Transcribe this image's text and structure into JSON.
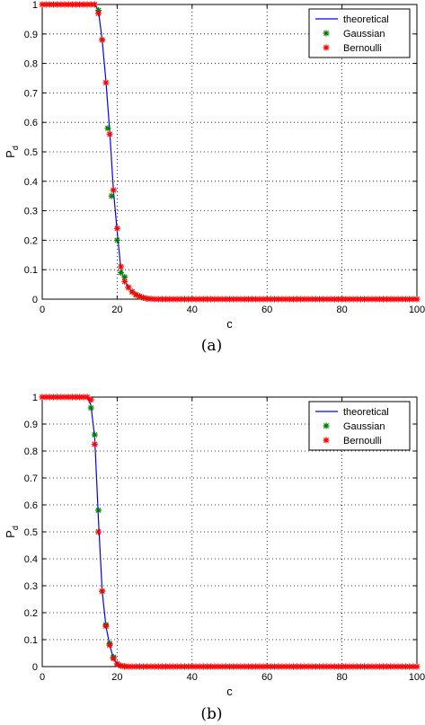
{
  "chart_data": [
    {
      "type": "line",
      "caption": "(a)",
      "xlabel": "c",
      "ylabel_main": "P",
      "ylabel_sub": "d",
      "xlim": [
        0,
        100
      ],
      "ylim": [
        0,
        1
      ],
      "xticks": [
        0,
        20,
        40,
        60,
        80,
        100
      ],
      "yticks": [
        0,
        0.1,
        0.2,
        0.3,
        0.4,
        0.5,
        0.6,
        0.7,
        0.8,
        0.9,
        1
      ],
      "grid": true,
      "legend_position": "top-right",
      "legend": [
        "theoretical",
        "Gaussian",
        "Bernoulli"
      ],
      "series": [
        {
          "name": "theoretical",
          "style": "line",
          "color": "#0000ff",
          "x": [
            0,
            14,
            15,
            16,
            17,
            18,
            19,
            20,
            21,
            22,
            23,
            24,
            25,
            26,
            27,
            28,
            30,
            100
          ],
          "y": [
            1,
            1,
            0.98,
            0.88,
            0.74,
            0.57,
            0.37,
            0.23,
            0.1,
            0.065,
            0.04,
            0.025,
            0.015,
            0.01,
            0.005,
            0.002,
            0,
            0
          ]
        },
        {
          "name": "Gaussian",
          "style": "marker",
          "color": "#007f00",
          "x": [
            15,
            16,
            17.5,
            18.5,
            20,
            21,
            22,
            23,
            24,
            25,
            26,
            27,
            28
          ],
          "y": [
            0.98,
            0.88,
            0.58,
            0.35,
            0.2,
            0.09,
            0.075,
            0.04,
            0.025,
            0.015,
            0.01,
            0.005,
            0.002
          ]
        },
        {
          "name": "Bernoulli",
          "style": "marker",
          "color": "#ff0000",
          "x": [
            0,
            1,
            2,
            3,
            4,
            5,
            6,
            7,
            8,
            9,
            10,
            11,
            12,
            13,
            14,
            15,
            16,
            17,
            18,
            19,
            20,
            21,
            22,
            23,
            24,
            25,
            26,
            27,
            28,
            29,
            30,
            31,
            32,
            33,
            34,
            35,
            36,
            37,
            38,
            39,
            40,
            41,
            42,
            43,
            44,
            45,
            46,
            47,
            48,
            49,
            50,
            51,
            52,
            53,
            54,
            55,
            56,
            57,
            58,
            59,
            60,
            61,
            62,
            63,
            64,
            65,
            66,
            67,
            68,
            69,
            70,
            71,
            72,
            73,
            74,
            75,
            76,
            77,
            78,
            79,
            80,
            81,
            82,
            83,
            84,
            85,
            86,
            87,
            88,
            89,
            90,
            91,
            92,
            93,
            94,
            95,
            96,
            97,
            98,
            99,
            100
          ],
          "y": [
            1,
            1,
            1,
            1,
            1,
            1,
            1,
            1,
            1,
            1,
            1,
            1,
            1,
            1,
            1,
            0.97,
            0.88,
            0.735,
            0.56,
            0.37,
            0.24,
            0.11,
            0.06,
            0.04,
            0.025,
            0.015,
            0.01,
            0.005,
            0.002,
            0.001,
            0,
            0,
            0,
            0,
            0,
            0,
            0,
            0,
            0,
            0,
            0,
            0,
            0,
            0,
            0,
            0,
            0,
            0,
            0,
            0,
            0,
            0,
            0,
            0,
            0,
            0,
            0,
            0,
            0,
            0,
            0,
            0,
            0,
            0,
            0,
            0,
            0,
            0,
            0,
            0,
            0,
            0,
            0,
            0,
            0,
            0,
            0,
            0,
            0,
            0,
            0,
            0,
            0,
            0,
            0,
            0,
            0,
            0,
            0,
            0,
            0,
            0,
            0,
            0,
            0,
            0,
            0,
            0,
            0,
            0,
            0
          ]
        }
      ]
    },
    {
      "type": "line",
      "caption": "(b)",
      "xlabel": "c",
      "ylabel_main": "P",
      "ylabel_sub": "d",
      "xlim": [
        0,
        100
      ],
      "ylim": [
        0,
        1
      ],
      "xticks": [
        0,
        20,
        40,
        60,
        80,
        100
      ],
      "yticks": [
        0,
        0.1,
        0.2,
        0.3,
        0.4,
        0.5,
        0.6,
        0.7,
        0.8,
        0.9,
        1
      ],
      "grid": true,
      "legend_position": "top-right",
      "legend": [
        "theoretical",
        "Gaussian",
        "Bernoulli"
      ],
      "series": [
        {
          "name": "theoretical",
          "style": "line",
          "color": "#0000ff",
          "x": [
            0,
            12,
            13,
            14,
            15,
            16,
            17,
            18,
            19,
            20,
            21,
            22,
            100
          ],
          "y": [
            1,
            1,
            0.97,
            0.85,
            0.55,
            0.28,
            0.15,
            0.08,
            0.03,
            0.01,
            0.003,
            0,
            0
          ]
        },
        {
          "name": "Gaussian",
          "style": "marker",
          "color": "#007f00",
          "x": [
            13,
            14,
            15,
            16,
            17,
            18,
            19,
            20,
            21,
            22
          ],
          "y": [
            0.96,
            0.86,
            0.58,
            0.28,
            0.155,
            0.085,
            0.035,
            0.01,
            0.003,
            0.001
          ]
        },
        {
          "name": "Bernoulli",
          "style": "marker",
          "color": "#ff0000",
          "x": [
            0,
            1,
            2,
            3,
            4,
            5,
            6,
            7,
            8,
            9,
            10,
            11,
            12,
            13,
            14,
            15,
            16,
            17,
            18,
            19,
            20,
            21,
            22,
            23,
            24,
            25,
            26,
            27,
            28,
            29,
            30,
            31,
            32,
            33,
            34,
            35,
            36,
            37,
            38,
            39,
            40,
            41,
            42,
            43,
            44,
            45,
            46,
            47,
            48,
            49,
            50,
            51,
            52,
            53,
            54,
            55,
            56,
            57,
            58,
            59,
            60,
            61,
            62,
            63,
            64,
            65,
            66,
            67,
            68,
            69,
            70,
            71,
            72,
            73,
            74,
            75,
            76,
            77,
            78,
            79,
            80,
            81,
            82,
            83,
            84,
            85,
            86,
            87,
            88,
            89,
            90,
            91,
            92,
            93,
            94,
            95,
            96,
            97,
            98,
            99,
            100
          ],
          "y": [
            1,
            1,
            1,
            1,
            1,
            1,
            1,
            1,
            1,
            1,
            1,
            1,
            1,
            0.99,
            0.825,
            0.5,
            0.28,
            0.15,
            0.08,
            0.03,
            0.01,
            0.003,
            0.001,
            0,
            0,
            0,
            0,
            0,
            0,
            0,
            0,
            0,
            0,
            0,
            0,
            0,
            0,
            0,
            0,
            0,
            0,
            0,
            0,
            0,
            0,
            0,
            0,
            0,
            0,
            0,
            0,
            0,
            0,
            0,
            0,
            0,
            0,
            0,
            0,
            0,
            0,
            0,
            0,
            0,
            0,
            0,
            0,
            0,
            0,
            0,
            0,
            0,
            0,
            0,
            0,
            0,
            0,
            0,
            0,
            0,
            0,
            0,
            0,
            0,
            0,
            0,
            0,
            0,
            0,
            0,
            0,
            0,
            0,
            0,
            0,
            0,
            0,
            0,
            0,
            0,
            0
          ]
        }
      ]
    }
  ]
}
